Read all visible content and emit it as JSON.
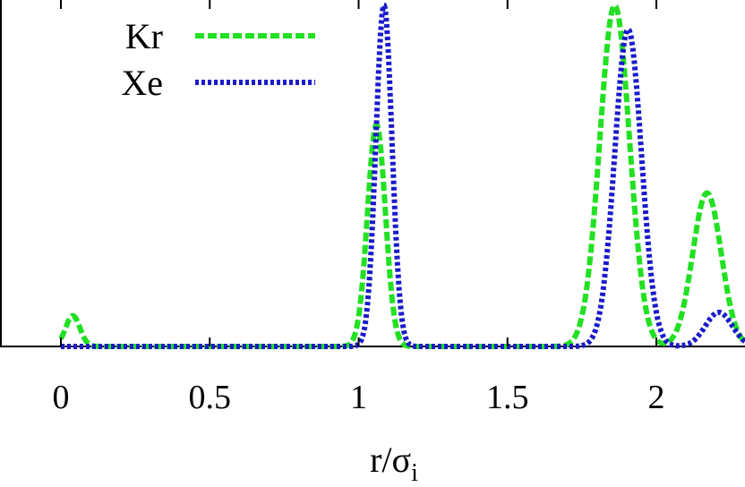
{
  "chart_data": {
    "type": "line",
    "title": "",
    "xlabel": "r/σ",
    "xlabel_subscript": "i",
    "ylabel": "",
    "xlim": [
      -0.1,
      2.3
    ],
    "ylim": [
      0,
      1.0
    ],
    "x_ticks": [
      {
        "value": 0,
        "label": "0"
      },
      {
        "value": 0.5,
        "label": "0.5"
      },
      {
        "value": 1,
        "label": "1"
      },
      {
        "value": 1.5,
        "label": "1.5"
      },
      {
        "value": 2,
        "label": "2"
      }
    ],
    "grid": false,
    "legend_position": "top-left",
    "series": [
      {
        "name": "Kr",
        "color": "#22e022",
        "style": "dashed",
        "peaks": [
          {
            "center": 0.04,
            "height": 0.09,
            "width": 0.024
          },
          {
            "center": 1.06,
            "height": 0.65,
            "width": 0.03
          },
          {
            "center": 1.86,
            "height": 1.0,
            "width": 0.05
          },
          {
            "center": 2.17,
            "height": 0.45,
            "width": 0.048
          }
        ]
      },
      {
        "name": "Xe",
        "color": "#1a1acc",
        "style": "dotted",
        "peaks": [
          {
            "center": 1.085,
            "height": 1.0,
            "width": 0.027
          },
          {
            "center": 1.905,
            "height": 0.93,
            "width": 0.045
          },
          {
            "center": 2.21,
            "height": 0.1,
            "width": 0.045
          }
        ]
      }
    ]
  }
}
